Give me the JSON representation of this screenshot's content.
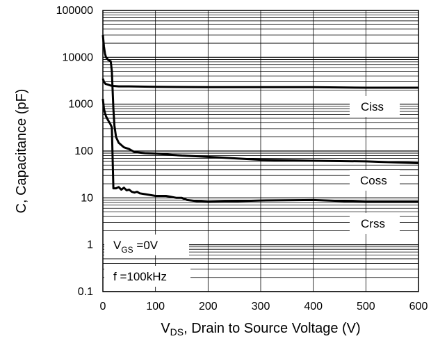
{
  "chart_data": {
    "type": "line",
    "title": "",
    "xlabel": {
      "main": "V",
      "sub": "DS",
      "rest": ", Drain to Source Voltage (V)"
    },
    "ylabel": "C, Capacitance (pF)",
    "xlim": [
      0,
      600
    ],
    "ylim": [
      0.1,
      100000
    ],
    "yscale": "log",
    "grid": true,
    "x_ticks": [
      "0",
      "100",
      "200",
      "300",
      "400",
      "500",
      "600"
    ],
    "y_ticks": [
      "0.1",
      "1",
      "10",
      "100",
      "1000",
      "10000",
      "100000"
    ],
    "series": [
      {
        "name": "Ciss",
        "x": [
          0,
          2,
          5,
          10,
          15,
          20,
          30,
          50,
          100,
          200,
          300,
          400,
          500,
          600
        ],
        "y": [
          3500,
          3000,
          2700,
          2600,
          2500,
          2450,
          2400,
          2400,
          2350,
          2300,
          2300,
          2300,
          2250,
          2250
        ]
      },
      {
        "name": "Coss",
        "x": [
          0,
          2,
          4,
          6,
          10,
          15,
          17,
          20,
          22,
          25,
          30,
          40,
          50,
          60,
          80,
          100,
          150,
          200,
          300,
          400,
          500,
          600
        ],
        "y": [
          30000,
          17000,
          12000,
          10000,
          8800,
          8200,
          5000,
          800,
          350,
          200,
          150,
          120,
          110,
          95,
          90,
          88,
          80,
          75,
          65,
          62,
          60,
          55
        ]
      },
      {
        "name": "Crss",
        "x": [
          0,
          2,
          4,
          6,
          10,
          14,
          17,
          20,
          25,
          30,
          35,
          40,
          45,
          50,
          55,
          60,
          65,
          70,
          80,
          100,
          120,
          140,
          150,
          160,
          180,
          200,
          300,
          400,
          500,
          600
        ],
        "y": [
          1300,
          800,
          650,
          550,
          450,
          380,
          320,
          16,
          16,
          17,
          15,
          16.5,
          14.5,
          15,
          13.5,
          13,
          13.5,
          12.5,
          12,
          11,
          11,
          10,
          10,
          9,
          8.5,
          8.2,
          8.8,
          9,
          8.2,
          8.2
        ]
      }
    ],
    "annotations": {
      "vgs": {
        "main": "V",
        "sub": "GS",
        "rest": " =0V"
      },
      "freq": "f =100kHz"
    }
  }
}
